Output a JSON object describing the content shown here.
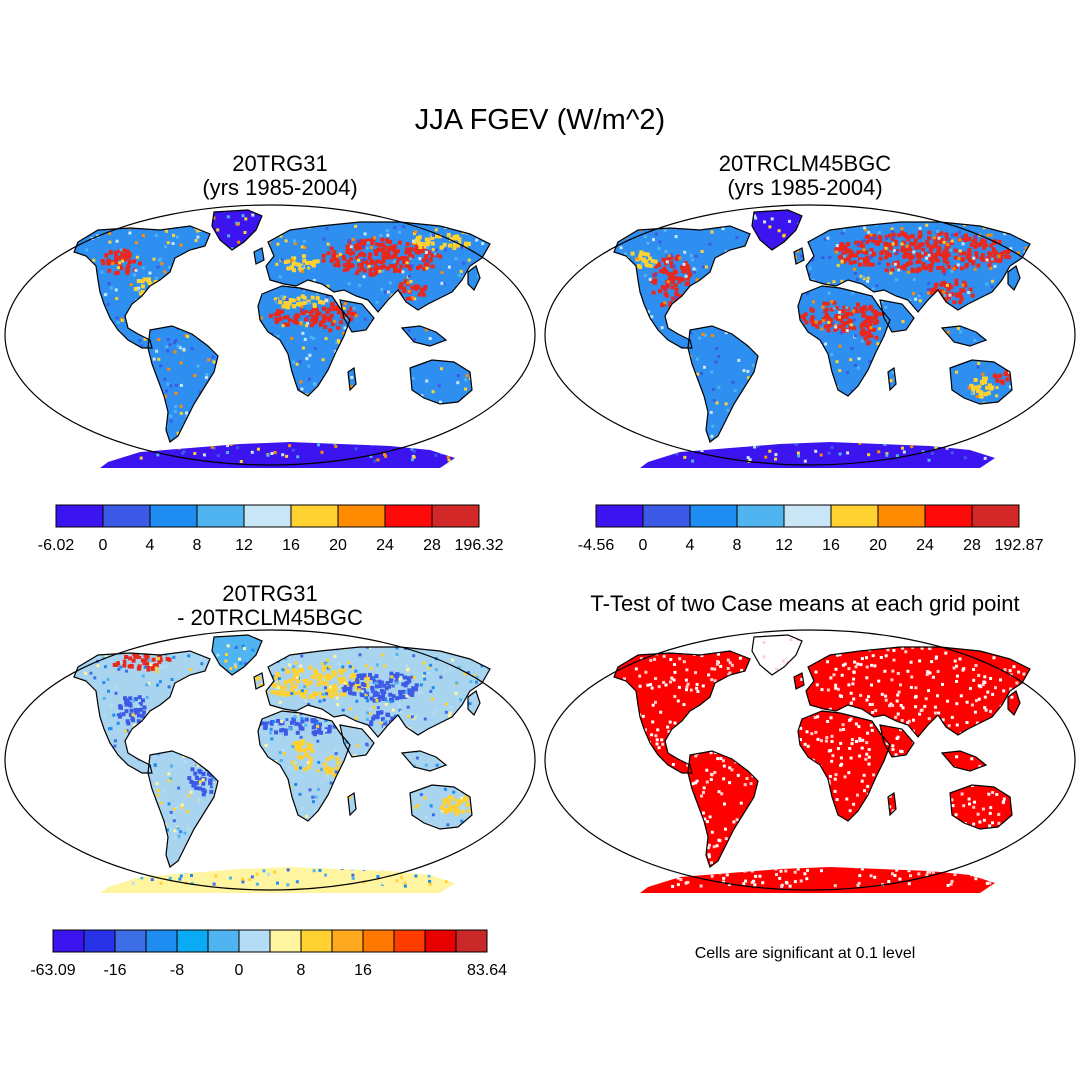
{
  "figure": {
    "title": "JJA FGEV (W/m^2)"
  },
  "panels": [
    {
      "id": "case1",
      "title_line1": "20TRG31",
      "title_line2": "(yrs 1985-2004)",
      "colorbar": {
        "colors": [
          "#3c14f0",
          "#3c5ae6",
          "#1e8cf0",
          "#50b4f0",
          "#c8e6f5",
          "#ffd232",
          "#ff8c00",
          "#ff0a0a",
          "#d22828"
        ],
        "labels": [
          "-6.02",
          "0",
          "4",
          "8",
          "12",
          "16",
          "20",
          "24",
          "28",
          "196.32"
        ]
      }
    },
    {
      "id": "case2",
      "title_line1": "20TRCLM45BGC",
      "title_line2": "(yrs 1985-2004)",
      "colorbar": {
        "colors": [
          "#3c14f0",
          "#3c5ae6",
          "#1e8cf0",
          "#50b4f0",
          "#c8e6f5",
          "#ffd232",
          "#ff8c00",
          "#ff0a0a",
          "#d22828"
        ],
        "labels": [
          "-4.56",
          "0",
          "4",
          "8",
          "12",
          "16",
          "20",
          "24",
          "28",
          "192.87"
        ]
      }
    },
    {
      "id": "diff",
      "title_line1": "20TRG31",
      "title_line2": "- 20TRCLM45BGC",
      "colorbar": {
        "colors": [
          "#3c14f0",
          "#2832e6",
          "#3c6ee6",
          "#1e8cf0",
          "#0aaaf5",
          "#50b4f0",
          "#b4dcf5",
          "#fff5a0",
          "#ffd232",
          "#ffaa1e",
          "#ff7800",
          "#ff3c00",
          "#e60000",
          "#c82828"
        ],
        "labels": [
          "-63.09",
          "",
          "-16",
          "",
          "-8",
          "",
          "0",
          "",
          "8",
          "",
          "16",
          "",
          "",
          "",
          "83.64"
        ]
      }
    },
    {
      "id": "ttest",
      "title_line1": "T-Test of two Case means at each grid point",
      "note": "Cells are significant at 0.1 level"
    }
  ],
  "map_colors": {
    "case1_land": "#2e8ff0",
    "case2_land": "#2e8ff0",
    "diff_land": "#a8d4f0",
    "ttest_land": "#ff0000",
    "antarctica_case": "#3c14f0",
    "antarctica_diff": "#fff5a0",
    "hot": "#e8281e",
    "warm": "#ffd232",
    "cool": "#3c5ae6"
  }
}
